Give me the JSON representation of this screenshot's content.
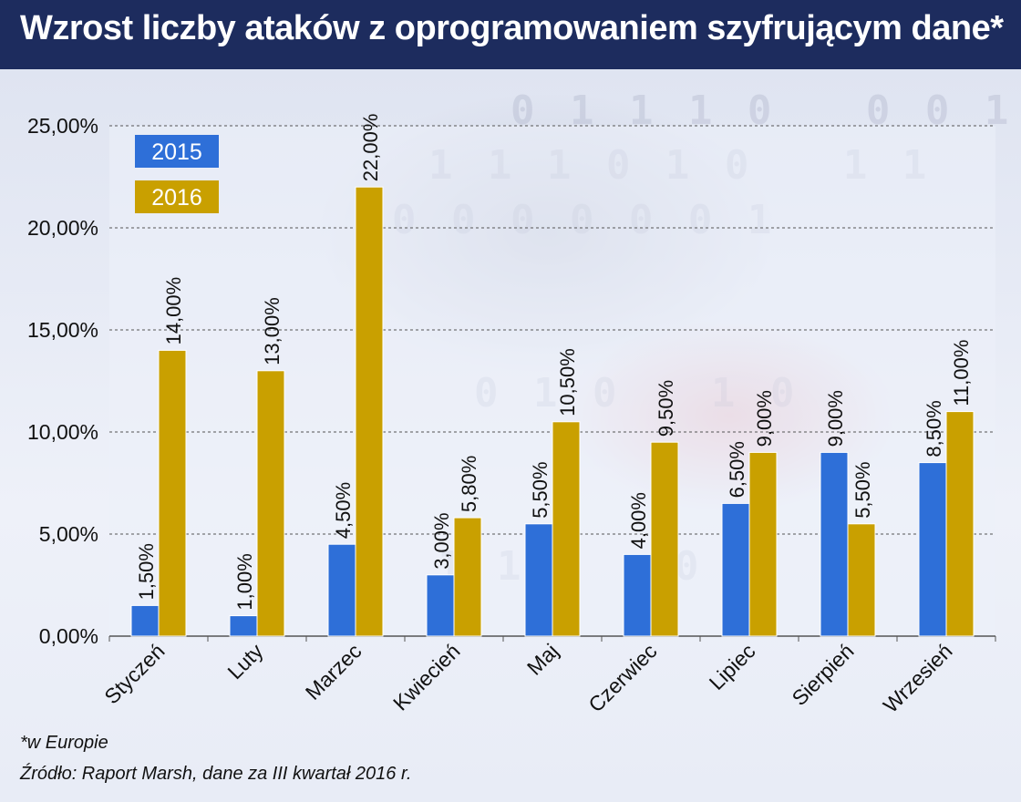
{
  "header": {
    "title": "Wzrost liczby ataków z oprogramowaniem szyfrującym dane*"
  },
  "footer": {
    "note": "*w Europie",
    "source": "Źródło:  Raport Marsh, dane za III kwartał 2016 r."
  },
  "colors": {
    "header_bg": "#1d2c5e",
    "series_2015": "#2e6fd8",
    "series_2016": "#c9a000"
  },
  "chart_data": {
    "type": "bar",
    "title": "Wzrost liczby ataków z oprogramowaniem szyfrującym dane*",
    "xlabel": "",
    "ylabel": "",
    "categories": [
      "Styczeń",
      "Luty",
      "Marzec",
      "Kwiecień",
      "Maj",
      "Czerwiec",
      "Lipiec",
      "Sierpień",
      "Wrzesień"
    ],
    "series": [
      {
        "name": "2015",
        "values": [
          1.5,
          1.0,
          4.5,
          3.0,
          5.5,
          4.0,
          6.5,
          9.0,
          8.5
        ],
        "labels": [
          "1,50%",
          "1,00%",
          "4,50%",
          "3,00%",
          "5,50%",
          "4,00%",
          "6,50%",
          "9,00%",
          "8,50%"
        ]
      },
      {
        "name": "2016",
        "values": [
          14.0,
          13.0,
          22.0,
          5.8,
          10.5,
          9.5,
          9.0,
          5.5,
          11.0
        ],
        "labels": [
          "14,00%",
          "13,00%",
          "22,00%",
          "5,80%",
          "10,50%",
          "9,50%",
          "9,00%",
          "5,50%",
          "11,00%"
        ]
      }
    ],
    "ylim": [
      0,
      25
    ],
    "yticks": [
      0,
      5,
      10,
      15,
      20,
      25
    ],
    "ytick_labels": [
      "0,00%",
      "5,00%",
      "10,00%",
      "15,00%",
      "20,00%",
      "25,00%"
    ],
    "grid": true,
    "legend_position": "top-left"
  }
}
